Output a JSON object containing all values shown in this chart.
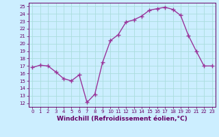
{
  "x": [
    0,
    1,
    2,
    3,
    4,
    5,
    6,
    7,
    8,
    9,
    10,
    11,
    12,
    13,
    14,
    15,
    16,
    17,
    18,
    19,
    20,
    21,
    22,
    23
  ],
  "y": [
    16.8,
    17.1,
    17.0,
    16.2,
    15.3,
    15.0,
    15.8,
    12.1,
    13.2,
    17.5,
    20.4,
    21.2,
    22.9,
    23.2,
    23.7,
    24.5,
    24.7,
    24.9,
    24.6,
    23.8,
    21.1,
    19.0,
    17.0,
    17.0
  ],
  "line_color": "#993399",
  "marker": "+",
  "marker_size": 4,
  "linewidth": 1.0,
  "xlabel": "Windchill (Refroidissement éolien,°C)",
  "xlabel_fontsize": 6.5,
  "xlim": [
    -0.5,
    23.5
  ],
  "ylim": [
    11.5,
    25.5
  ],
  "yticks": [
    12,
    13,
    14,
    15,
    16,
    17,
    18,
    19,
    20,
    21,
    22,
    23,
    24,
    25
  ],
  "xticks": [
    0,
    1,
    2,
    3,
    4,
    5,
    6,
    7,
    8,
    9,
    10,
    11,
    12,
    13,
    14,
    15,
    16,
    17,
    18,
    19,
    20,
    21,
    22,
    23
  ],
  "background_color": "#cceeff",
  "grid_color": "#aadddd",
  "tick_color": "#660066",
  "axis_color": "#660066",
  "label_color": "#660066",
  "tick_fontsize": 5.0,
  "markeredgewidth": 1.0
}
